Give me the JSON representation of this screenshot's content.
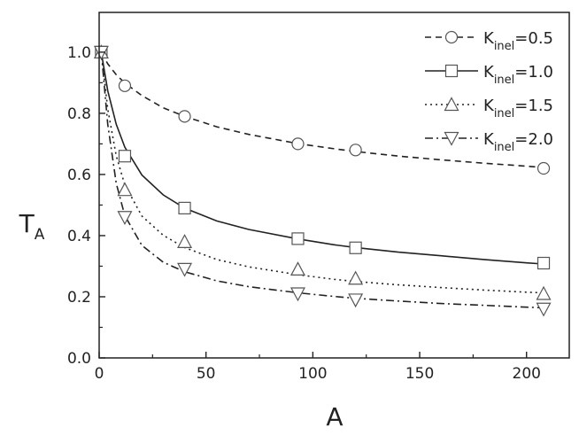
{
  "chart_data": {
    "type": "scatter",
    "xlabel": "A",
    "ylabel": {
      "main": "T",
      "sub": "A"
    },
    "xlim": [
      0,
      220
    ],
    "ylim": [
      0.0,
      1.13
    ],
    "xticks": [
      0,
      50,
      100,
      150,
      200
    ],
    "xtick_labels": [
      "0",
      "50",
      "100",
      "150",
      "200"
    ],
    "yticks": [
      0.0,
      0.2,
      0.4,
      0.6,
      0.8,
      1.0
    ],
    "ytick_labels": [
      "0.0",
      "0.2",
      "0.4",
      "0.6",
      "0.8",
      "1.0"
    ],
    "grid": false,
    "legend_position": "top-right",
    "series": [
      {
        "name": "K_inel=0.5",
        "legend": {
          "main": "K",
          "sub": "inel",
          "value": "=0.5"
        },
        "marker": "circle",
        "line_style": "dashed",
        "points": {
          "x": [
            1,
            12,
            40,
            93,
            120,
            208
          ],
          "y": [
            1.0,
            0.89,
            0.79,
            0.7,
            0.68,
            0.62
          ]
        },
        "curve": {
          "x": [
            1,
            4,
            8,
            12,
            20,
            30,
            40,
            55,
            70,
            93,
            110,
            120,
            140,
            160,
            180,
            200,
            208
          ],
          "y": [
            1.0,
            0.962,
            0.926,
            0.899,
            0.858,
            0.818,
            0.79,
            0.756,
            0.731,
            0.701,
            0.684,
            0.675,
            0.66,
            0.648,
            0.637,
            0.627,
            0.623
          ]
        }
      },
      {
        "name": "K_inel=1.0",
        "legend": {
          "main": "K",
          "sub": "inel",
          "value": "=1.0"
        },
        "marker": "square",
        "line_style": "solid",
        "points": {
          "x": [
            1,
            12,
            40,
            93,
            120,
            208
          ],
          "y": [
            1.0,
            0.66,
            0.49,
            0.39,
            0.36,
            0.31
          ]
        },
        "curve": {
          "x": [
            1,
            4,
            8,
            12,
            20,
            30,
            40,
            55,
            70,
            93,
            110,
            120,
            140,
            160,
            180,
            200,
            208
          ],
          "y": [
            1.0,
            0.874,
            0.764,
            0.689,
            0.598,
            0.533,
            0.49,
            0.448,
            0.42,
            0.389,
            0.37,
            0.361,
            0.346,
            0.334,
            0.322,
            0.311,
            0.307
          ]
        }
      },
      {
        "name": "K_inel=1.5",
        "legend": {
          "main": "K",
          "sub": "inel",
          "value": "=1.5"
        },
        "marker": "triangle-up",
        "line_style": "dotted",
        "points": {
          "x": [
            1,
            12,
            40,
            93,
            120,
            208
          ],
          "y": [
            1.0,
            0.55,
            0.38,
            0.29,
            0.26,
            0.21
          ]
        },
        "curve": {
          "x": [
            1,
            4,
            8,
            12,
            20,
            30,
            40,
            55,
            70,
            93,
            110,
            120,
            140,
            160,
            180,
            200,
            208
          ],
          "y": [
            1.0,
            0.814,
            0.661,
            0.566,
            0.464,
            0.401,
            0.361,
            0.322,
            0.298,
            0.272,
            0.257,
            0.25,
            0.239,
            0.23,
            0.222,
            0.215,
            0.213
          ]
        }
      },
      {
        "name": "K_inel=2.0",
        "legend": {
          "main": "K",
          "sub": "inel",
          "value": "=2.0"
        },
        "marker": "triangle-down",
        "line_style": "dashdot",
        "points": {
          "x": [
            1,
            12,
            40,
            93,
            120,
            208
          ],
          "y": [
            1.0,
            0.46,
            0.29,
            0.21,
            0.19,
            0.16
          ]
        },
        "curve": {
          "x": [
            1,
            4,
            8,
            12,
            20,
            30,
            40,
            55,
            70,
            93,
            110,
            120,
            140,
            160,
            180,
            200,
            208
          ],
          "y": [
            1.0,
            0.764,
            0.571,
            0.465,
            0.368,
            0.313,
            0.282,
            0.252,
            0.233,
            0.213,
            0.201,
            0.195,
            0.186,
            0.178,
            0.172,
            0.166,
            0.164
          ]
        }
      }
    ]
  }
}
